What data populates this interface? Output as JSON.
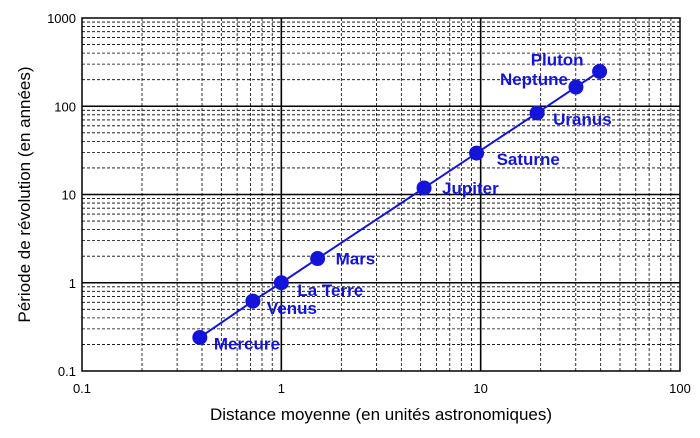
{
  "chart_data": {
    "type": "scatter",
    "title": "",
    "xlabel": "Distance moyenne (en unités astronomiques)",
    "ylabel": "Période de révolution (en années)",
    "x_scale": "log",
    "y_scale": "log",
    "xlim": [
      0.1,
      100
    ],
    "ylim": [
      0.1,
      1000
    ],
    "x_ticks": [
      "0.1",
      "1",
      "10",
      "100"
    ],
    "y_ticks": [
      "0.1",
      "1",
      "10",
      "100",
      "1000"
    ],
    "grid": true,
    "series": [
      {
        "color": "#1414d8",
        "points": [
          {
            "label": "Mercure",
            "x": 0.39,
            "y": 0.24
          },
          {
            "label": "Venus",
            "x": 0.72,
            "y": 0.62
          },
          {
            "label": "La Terre",
            "x": 1.0,
            "y": 1.0
          },
          {
            "label": "Mars",
            "x": 1.52,
            "y": 1.88
          },
          {
            "label": "Jupiter",
            "x": 5.2,
            "y": 11.86
          },
          {
            "label": "Saturne",
            "x": 9.54,
            "y": 29.46
          },
          {
            "label": "Uranus",
            "x": 19.2,
            "y": 84.0
          },
          {
            "label": "Neptune",
            "x": 30.06,
            "y": 164.8
          },
          {
            "label": "Pluton",
            "x": 39.5,
            "y": 248.0
          }
        ]
      }
    ]
  }
}
